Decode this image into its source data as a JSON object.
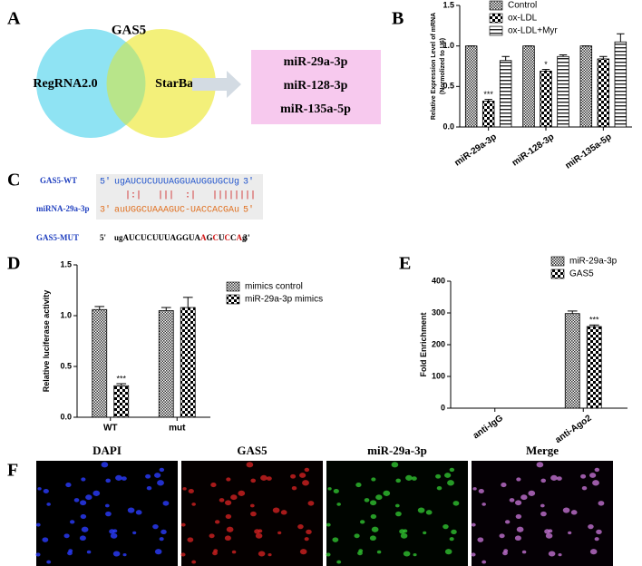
{
  "panel_letters": [
    "A",
    "B",
    "C",
    "D",
    "E",
    "F"
  ],
  "venn": {
    "title": "GAS5",
    "sets": [
      "RegRNA2.0",
      "StarBase"
    ],
    "results": [
      "miR-29a-3p",
      "miR-128-3p",
      "miR-135a-5p"
    ]
  },
  "sequences": {
    "wt": {
      "label": "GAS5-WT",
      "start": "5'",
      "seq": "ugAUCUCUUUAGGUAUGGUGCUg",
      "end": "3'"
    },
    "pairing": "|:|   |||  :|   ||||||||",
    "mirna": {
      "label": "miRNA-29a-3p",
      "start": "3'",
      "seq": "auUGGCUAAAGUC-UACCACGAu",
      "end": "5'"
    },
    "mut": {
      "label": "GAS5-MUT",
      "start": "5'",
      "segments": [
        "ugAUCUCUUUAGGUA",
        "A",
        "G",
        "C",
        "U",
        "C",
        "C",
        "A",
        "g"
      ],
      "end": "3'"
    }
  },
  "chart_data": [
    {
      "type": "bar",
      "ylabel": [
        "Relative Expression Level of mRNA",
        "(Normolized to U6)"
      ],
      "categories": [
        "miR-29a-3p",
        "miR-128-3p",
        "miR-135a-5p"
      ],
      "series": [
        {
          "name": "Control",
          "pattern": "checks",
          "values": [
            1.0,
            1.0,
            1.0
          ],
          "errors": [
            0,
            0,
            0
          ],
          "significance": [
            null,
            null,
            null
          ]
        },
        {
          "name": "ox-LDL",
          "pattern": "bold-checks",
          "values": [
            0.32,
            0.69,
            0.84
          ],
          "errors": [
            0.02,
            0.02,
            0.03
          ],
          "significance": [
            "***",
            "*",
            null
          ]
        },
        {
          "name": "ox-LDL+Myr",
          "pattern": "stripes",
          "values": [
            0.82,
            0.87,
            1.05
          ],
          "errors": [
            0.05,
            0.02,
            0.1
          ],
          "significance": [
            null,
            null,
            null
          ]
        }
      ],
      "ylim": [
        0,
        1.5
      ],
      "yticks": [
        {
          "value": 0,
          "label": "0.0"
        },
        {
          "value": 0.5,
          "label": "0.5"
        },
        {
          "value": 1,
          "label": "1.0"
        },
        {
          "value": 1.5,
          "label": "1.5"
        }
      ]
    },
    {
      "type": "bar",
      "ylabel": [
        "Relative luciferase activity"
      ],
      "categories": [
        "WT",
        "mut"
      ],
      "series": [
        {
          "name": "mimics control",
          "pattern": "checks",
          "values": [
            1.06,
            1.05
          ],
          "errors": [
            0.03,
            0.03
          ],
          "significance": [
            null,
            null
          ]
        },
        {
          "name": "miR-29a-3p mimics",
          "pattern": "bold-checks",
          "values": [
            0.31,
            1.08
          ],
          "errors": [
            0.02,
            0.1
          ],
          "significance": [
            "***",
            null
          ]
        }
      ],
      "ylim": [
        0,
        1.5
      ],
      "yticks": [
        {
          "value": 0,
          "label": "0.0"
        },
        {
          "value": 0.5,
          "label": "0.5"
        },
        {
          "value": 1,
          "label": "1.0"
        },
        {
          "value": 1.5,
          "label": "1.5"
        }
      ]
    },
    {
      "type": "bar",
      "ylabel": [
        "Fold Enrichment"
      ],
      "categories": [
        "anti-IgG",
        "anti-Ago2"
      ],
      "series": [
        {
          "name": "miR-29a-3p",
          "pattern": "checks",
          "values": [
            0,
            298
          ],
          "errors": [
            0,
            8
          ],
          "significance": [
            null,
            null
          ]
        },
        {
          "name": "GAS5",
          "pattern": "bold-checks",
          "values": [
            0,
            257
          ],
          "errors": [
            0,
            5
          ],
          "significance": [
            null,
            "***"
          ]
        }
      ],
      "ylim": [
        0,
        400
      ],
      "yticks": [
        0,
        100,
        200,
        300,
        400
      ]
    }
  ],
  "images": {
    "labels": [
      "DAPI",
      "GAS5",
      "miR-29a-3p",
      "Merge"
    ]
  }
}
